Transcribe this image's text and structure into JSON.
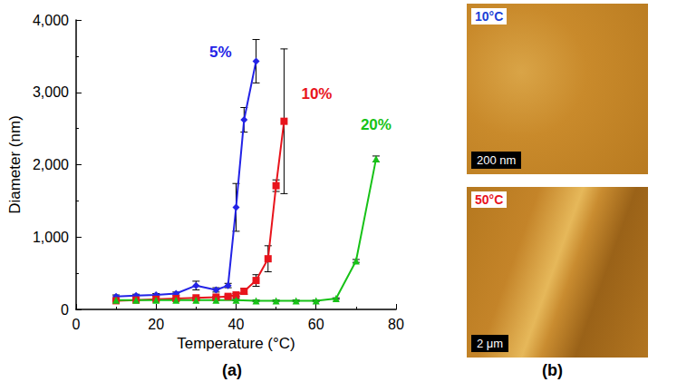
{
  "chart_data": {
    "type": "line",
    "x_label": "Temperature (°C)",
    "y_label": "Diameter (nm)",
    "xlim": [
      0,
      80
    ],
    "xticks": [
      0,
      20,
      40,
      60,
      80
    ],
    "ylim": [
      0,
      4000
    ],
    "yticks": [
      0,
      1000,
      2000,
      3000,
      4000
    ],
    "grid": false,
    "series": [
      {
        "name": "5%",
        "color": "#2323e6",
        "marker": "diamond",
        "x": [
          10,
          15,
          20,
          25,
          30,
          35,
          38,
          40,
          42,
          45
        ],
        "values": [
          180,
          190,
          200,
          220,
          330,
          270,
          330,
          1410,
          2620,
          3430
        ],
        "error": [
          20,
          20,
          20,
          20,
          60,
          30,
          30,
          330,
          170,
          300
        ]
      },
      {
        "name": "10%",
        "color": "#e8141c",
        "marker": "square",
        "x": [
          10,
          15,
          20,
          25,
          30,
          35,
          38,
          40,
          42,
          45,
          48,
          50,
          52
        ],
        "values": [
          120,
          130,
          140,
          150,
          160,
          170,
          180,
          200,
          250,
          400,
          700,
          1710,
          2600
        ],
        "error": [
          10,
          10,
          10,
          10,
          10,
          10,
          20,
          20,
          40,
          80,
          180,
          80,
          1000
        ]
      },
      {
        "name": "20%",
        "color": "#17c217",
        "marker": "triangle",
        "x": [
          10,
          15,
          20,
          25,
          30,
          35,
          40,
          45,
          50,
          55,
          60,
          65,
          70,
          75
        ],
        "values": [
          130,
          130,
          130,
          130,
          130,
          130,
          130,
          120,
          120,
          120,
          120,
          150,
          670,
          2080
        ],
        "error": [
          10,
          10,
          10,
          10,
          10,
          10,
          10,
          10,
          10,
          10,
          10,
          10,
          20,
          40
        ]
      }
    ]
  },
  "panel_labels": [
    "(a)",
    "(b)"
  ],
  "images": [
    {
      "label": "10°C",
      "label_color": "#1a3fd6",
      "scale_bar": "200 nm"
    },
    {
      "label": "50°C",
      "label_color": "#e8141c",
      "scale_bar": "2 μm"
    }
  ]
}
